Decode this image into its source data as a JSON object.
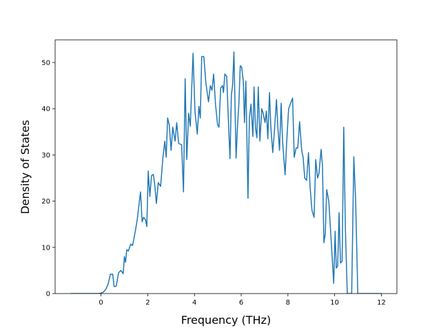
{
  "chart_data": {
    "type": "line",
    "x_label": "Frequency (THz)",
    "y_label": "Density of States",
    "xlim": [
      -1.965,
      12.665
    ],
    "ylim": [
      0,
      54.9
    ],
    "xticks": [
      0,
      2,
      4,
      6,
      8,
      10,
      12
    ],
    "yticks": [
      0,
      10,
      20,
      30,
      40,
      50
    ],
    "x": [
      -1.3,
      -0.1,
      0.0,
      0.1,
      0.2,
      0.3,
      0.4,
      0.5,
      0.56,
      0.65,
      0.75,
      0.85,
      0.95,
      1.0,
      1.05,
      1.1,
      1.17,
      1.27,
      1.35,
      1.45,
      1.55,
      1.69,
      1.76,
      1.82,
      1.9,
      1.96,
      2.02,
      2.09,
      2.16,
      2.24,
      2.29,
      2.37,
      2.45,
      2.55,
      2.65,
      2.73,
      2.79,
      2.85,
      2.92,
      3.0,
      3.07,
      3.17,
      3.24,
      3.32,
      3.45,
      3.53,
      3.6,
      3.67,
      3.75,
      3.82,
      3.94,
      4.02,
      4.12,
      4.19,
      4.25,
      4.31,
      4.4,
      4.49,
      4.6,
      4.68,
      4.75,
      4.82,
      4.9,
      4.99,
      5.05,
      5.12,
      5.2,
      5.24,
      5.3,
      5.38,
      5.44,
      5.52,
      5.58,
      5.63,
      5.69,
      5.78,
      5.84,
      5.9,
      5.96,
      6.02,
      6.09,
      6.14,
      6.2,
      6.29,
      6.35,
      6.42,
      6.5,
      6.55,
      6.61,
      6.67,
      6.73,
      6.8,
      6.88,
      6.94,
      7.02,
      7.08,
      7.14,
      7.21,
      7.27,
      7.35,
      7.42,
      7.51,
      7.57,
      7.64,
      7.71,
      7.77,
      7.88,
      7.95,
      8.03,
      8.2,
      8.27,
      8.35,
      8.42,
      8.5,
      8.59,
      8.65,
      8.72,
      8.8,
      8.88,
      8.95,
      9.03,
      9.12,
      9.19,
      9.27,
      9.33,
      9.42,
      9.48,
      9.54,
      9.6,
      9.66,
      9.75,
      9.87,
      9.96,
      10.02,
      10.07,
      10.13,
      10.19,
      10.25,
      10.32,
      10.39,
      10.46,
      10.54,
      10.73,
      10.82,
      10.9,
      10.99,
      12.0
    ],
    "series": [
      {
        "color": "#1f77b4",
        "values": [
          0,
          0,
          0.1,
          0.3,
          0.9,
          2.0,
          4.2,
          4.2,
          1.5,
          1.6,
          4.5,
          5,
          4.3,
          8,
          6.8,
          9.5,
          9.2,
          10.7,
          10.4,
          13,
          16,
          22,
          15.5,
          16.5,
          16,
          14.5,
          26.5,
          21,
          25.5,
          25.8,
          24,
          19.5,
          24,
          23.2,
          29.5,
          33,
          29.5,
          38,
          36.5,
          31,
          36,
          33,
          37,
          32.5,
          32.2,
          22,
          46.5,
          29,
          39,
          36.2,
          52,
          39.5,
          34.5,
          40.5,
          38,
          51.3,
          51.3,
          45.5,
          41.5,
          45,
          44,
          47.5,
          41,
          36.5,
          36,
          44.5,
          45,
          43.5,
          47.5,
          47,
          39,
          29.2,
          43,
          45,
          52.3,
          29.3,
          36,
          41,
          49.3,
          49,
          46,
          37,
          46,
          20.6,
          38,
          41,
          34,
          44.7,
          36,
          33.7,
          44.7,
          33,
          40,
          39,
          37,
          39.5,
          33.5,
          43.5,
          36,
          30.5,
          35,
          42,
          36,
          31,
          41.2,
          33,
          25.7,
          33,
          40,
          42.3,
          29.5,
          31.5,
          31.5,
          37.2,
          31,
          29.5,
          25,
          24.5,
          30.5,
          23,
          18,
          16.5,
          29,
          25,
          26,
          31.2,
          27.5,
          11,
          13,
          22.5,
          20,
          10,
          2.2,
          13.5,
          5.5,
          6,
          17.5,
          6.6,
          7,
          36,
          14,
          0,
          0,
          29.6,
          20,
          0,
          0
        ]
      }
    ]
  }
}
